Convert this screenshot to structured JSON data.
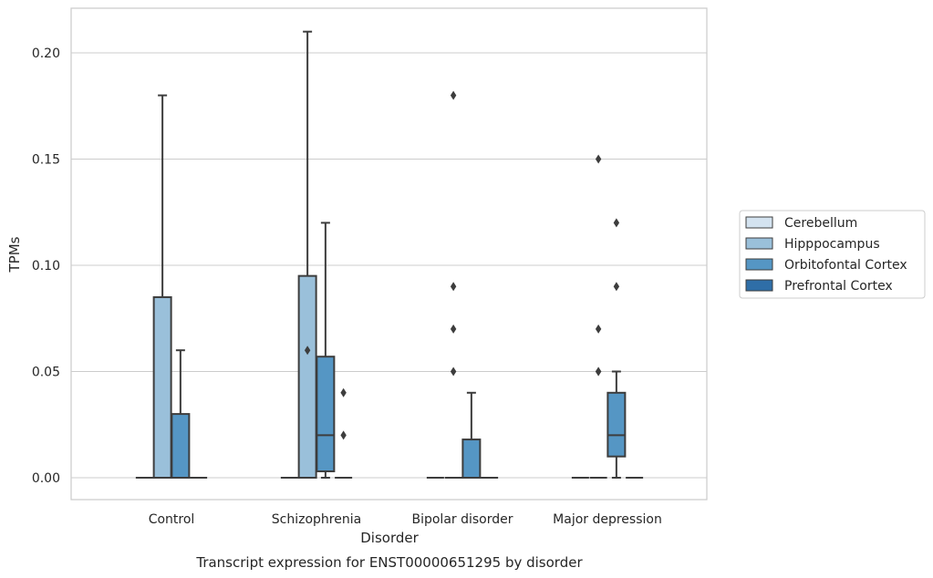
{
  "chart_data": {
    "type": "box",
    "xlabel": "Disorder",
    "ylabel": "TPMs",
    "caption": "Transcript expression for ENST00000651295 by disorder",
    "categories": [
      "Control",
      "Schizophrenia",
      "Bipolar disorder",
      "Major depression"
    ],
    "y_ticks": [
      "0.00",
      "0.05",
      "0.10",
      "0.15",
      "0.20"
    ],
    "ylim": [
      -0.01,
      0.22
    ],
    "grid": true,
    "legend_position": "right",
    "series": [
      {
        "name": "Cerebellum",
        "color": "#d4e3f0",
        "boxes": [
          {
            "q1": 0,
            "median": 0,
            "q3": 0,
            "whisker_low": 0,
            "whisker_high": 0,
            "fliers": []
          },
          {
            "q1": 0,
            "median": 0,
            "q3": 0,
            "whisker_low": 0,
            "whisker_high": 0,
            "fliers": []
          },
          {
            "q1": 0,
            "median": 0,
            "q3": 0,
            "whisker_low": 0,
            "whisker_high": 0,
            "fliers": []
          },
          {
            "q1": 0,
            "median": 0,
            "q3": 0,
            "whisker_low": 0,
            "whisker_high": 0,
            "fliers": []
          }
        ]
      },
      {
        "name": "Hipppocampus",
        "color": "#9ac0da",
        "boxes": [
          {
            "q1": 0,
            "median": 0,
            "q3": 0.085,
            "whisker_low": 0,
            "whisker_high": 0.18,
            "fliers": []
          },
          {
            "q1": 0,
            "median": 0,
            "q3": 0.095,
            "whisker_low": 0,
            "whisker_high": 0.21,
            "fliers": [
              0.06
            ]
          },
          {
            "q1": 0,
            "median": 0,
            "q3": 0,
            "whisker_low": 0,
            "whisker_high": 0,
            "fliers": [
              0.05,
              0.09,
              0.07,
              0.18
            ]
          },
          {
            "q1": 0,
            "median": 0,
            "q3": 0,
            "whisker_low": 0,
            "whisker_high": 0,
            "fliers": [
              0.05,
              0.15,
              0.07,
              0.05
            ]
          }
        ]
      },
      {
        "name": "Orbitofontal Cortex",
        "color": "#5596c4",
        "boxes": [
          {
            "q1": 0,
            "median": 0,
            "q3": 0.03,
            "whisker_low": 0,
            "whisker_high": 0.06,
            "fliers": []
          },
          {
            "q1": 0.003,
            "median": 0.02,
            "q3": 0.057,
            "whisker_low": 0,
            "whisker_high": 0.12,
            "fliers": []
          },
          {
            "q1": 0,
            "median": 0,
            "q3": 0.018,
            "whisker_low": 0,
            "whisker_high": 0.04,
            "fliers": []
          },
          {
            "q1": 0.01,
            "median": 0.02,
            "q3": 0.04,
            "whisker_low": 0,
            "whisker_high": 0.05,
            "fliers": [
              0.12,
              0.09
            ]
          }
        ]
      },
      {
        "name": "Prefrontal Cortex",
        "color": "#2f6ea7",
        "boxes": [
          {
            "q1": 0,
            "median": 0,
            "q3": 0,
            "whisker_low": 0,
            "whisker_high": 0,
            "fliers": []
          },
          {
            "q1": 0,
            "median": 0,
            "q3": 0,
            "whisker_low": 0,
            "whisker_high": 0,
            "fliers": [
              0.04,
              0.02
            ]
          },
          {
            "q1": 0,
            "median": 0,
            "q3": 0,
            "whisker_low": 0,
            "whisker_high": 0,
            "fliers": []
          },
          {
            "q1": 0,
            "median": 0,
            "q3": 0,
            "whisker_low": 0,
            "whisker_high": 0,
            "fliers": []
          }
        ]
      }
    ]
  }
}
